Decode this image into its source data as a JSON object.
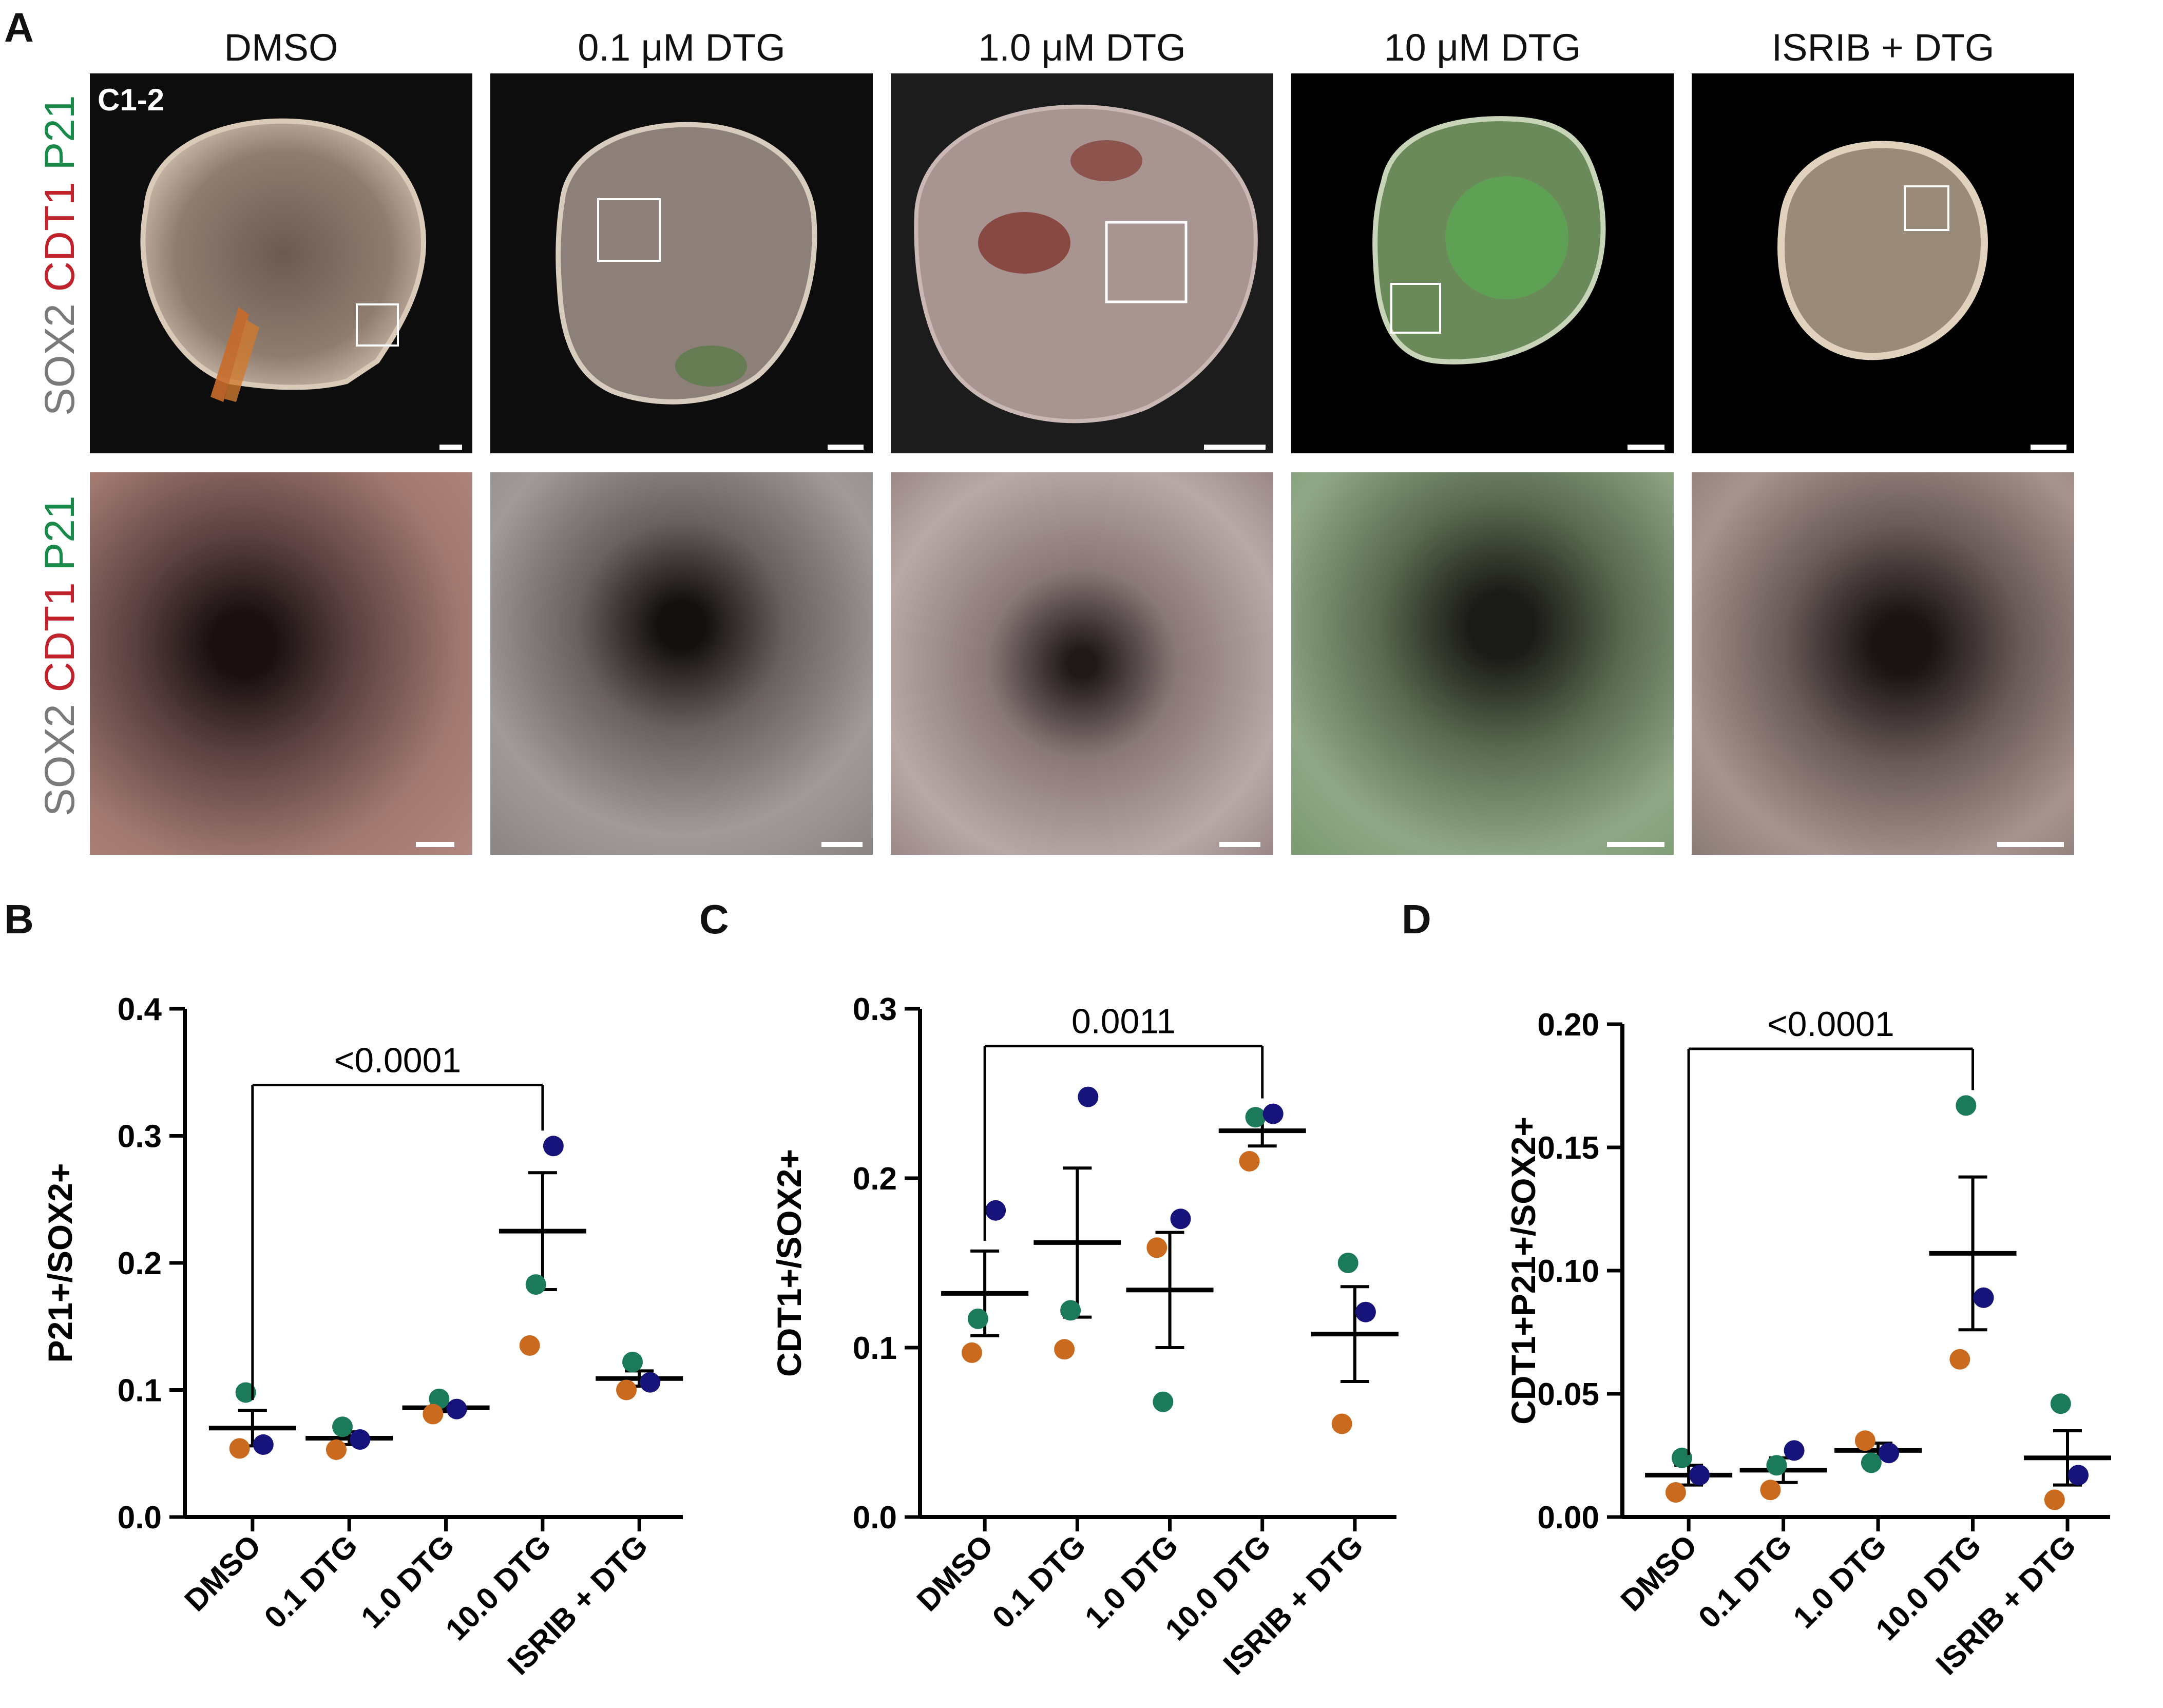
{
  "panels": {
    "A": "A",
    "B": "B",
    "C": "C",
    "D": "D"
  },
  "microscopy": {
    "columns": [
      "DMSO",
      "0.1 μM DTG",
      "1.0 μM DTG",
      "10 μM DTG",
      "ISRIB + DTG"
    ],
    "stain_label": {
      "sox2": "SOX2",
      "cdt1": "CDT1",
      "p21": "P21"
    },
    "sample_tag": "C1-2"
  },
  "colors": {
    "orange": "#c96a1e",
    "green": "#1a7a5a",
    "navy": "#16137a"
  },
  "chart_data": [
    {
      "type": "scatter",
      "panel": "B",
      "ylabel": "P21+/SOX2+",
      "categories": [
        "DMSO",
        "0.1 DTG",
        "1.0 DTG",
        "10.0 DTG",
        "ISRIB + DTG"
      ],
      "ylim": [
        0,
        0.4
      ],
      "yticks": [
        "0.0",
        "0.1",
        "0.2",
        "0.3",
        "0.4"
      ],
      "tickvals": [
        0,
        0.1,
        0.2,
        0.3,
        0.4
      ],
      "points": [
        [
          0.098,
          0.054,
          0.057
        ],
        [
          0.071,
          0.053,
          0.061
        ],
        [
          0.093,
          0.081,
          0.085
        ],
        [
          0.183,
          0.135,
          0.292
        ],
        [
          0.122,
          0.1,
          0.106
        ]
      ],
      "mean": [
        0.07,
        0.062,
        0.086,
        0.225,
        0.109
      ],
      "sem": [
        0.014,
        0.005,
        0.003,
        0.046,
        0.006
      ],
      "bracket": {
        "from": 0,
        "to": 3,
        "label": "<0.0001",
        "y": 0.34
      }
    },
    {
      "type": "scatter",
      "panel": "C",
      "ylabel": "CDT1+/SOX2+",
      "categories": [
        "DMSO",
        "0.1 DTG",
        "1.0 DTG",
        "10.0 DTG",
        "ISRIB + DTG"
      ],
      "ylim": [
        0,
        0.3
      ],
      "yticks": [
        "0.0",
        "0.1",
        "0.2",
        "0.3"
      ],
      "tickvals": [
        0,
        0.1,
        0.2,
        0.3
      ],
      "points": [
        [
          0.117,
          0.097,
          0.181
        ],
        [
          0.122,
          0.099,
          0.248
        ],
        [
          0.068,
          0.159,
          0.176
        ],
        [
          0.236,
          0.21,
          0.238
        ],
        [
          0.15,
          0.055,
          0.121
        ]
      ],
      "mean": [
        0.132,
        0.162,
        0.134,
        0.228,
        0.108
      ],
      "sem": [
        0.025,
        0.044,
        0.034,
        0.009,
        0.028
      ],
      "bracket": {
        "from": 0,
        "to": 3,
        "label": "0.0011",
        "y": 0.278
      }
    },
    {
      "type": "scatter",
      "panel": "D",
      "ylabel": "CDT1+P21+/SOX2+",
      "categories": [
        "DMSO",
        "0.1 DTG",
        "1.0 DTG",
        "10.0 DTG",
        "ISRIB + DTG"
      ],
      "ylim": [
        0,
        0.2
      ],
      "yticks": [
        "0.00",
        "0.05",
        "0.10",
        "0.15",
        "0.20"
      ],
      "tickvals": [
        0,
        0.05,
        0.1,
        0.15,
        0.2
      ],
      "points": [
        [
          0.024,
          0.01,
          0.017
        ],
        [
          0.021,
          0.011,
          0.027
        ],
        [
          0.022,
          0.031,
          0.026
        ],
        [
          0.167,
          0.064,
          0.089
        ],
        [
          0.046,
          0.007,
          0.017
        ]
      ],
      "mean": [
        0.017,
        0.019,
        0.027,
        0.107,
        0.024
      ],
      "sem": [
        0.004,
        0.005,
        0.003,
        0.031,
        0.011
      ],
      "bracket": {
        "from": 0,
        "to": 3,
        "label": "<0.0001",
        "y": 0.19
      }
    }
  ]
}
